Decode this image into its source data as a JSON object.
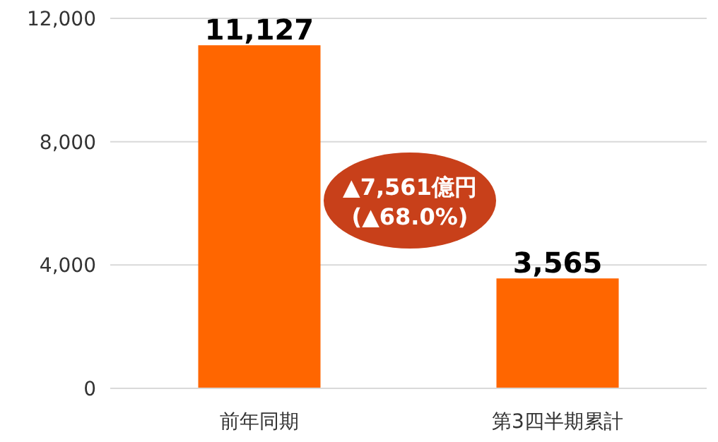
{
  "chart_data": {
    "type": "bar",
    "categories": [
      "前年同期",
      "第3四半期累計"
    ],
    "values": [
      11127,
      3565
    ],
    "value_labels": [
      "11,127",
      "3,565"
    ],
    "color": "#ff6600",
    "ylim": [
      0,
      12000
    ],
    "yticks": [
      0,
      {
        "value": 4000,
        "label": "4,000"
      },
      {
        "value": 8000,
        "label": "8,000"
      },
      {
        "value": 12000,
        "label": "12,000"
      }
    ],
    "grid": "y",
    "annotations": [
      "▲7,561億円\n(▲68.0%)"
    ]
  }
}
